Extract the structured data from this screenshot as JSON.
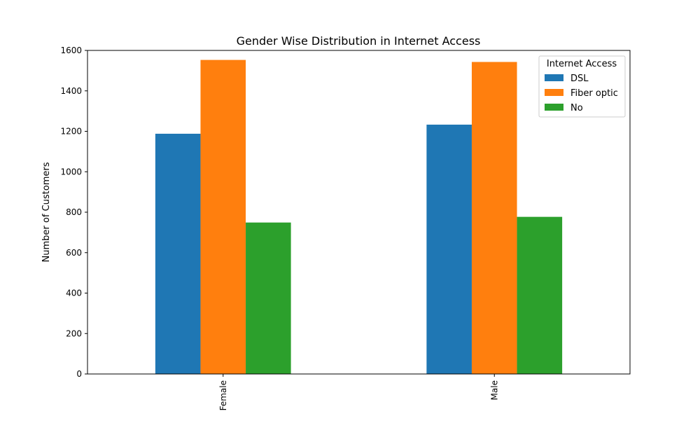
{
  "chart_data": {
    "type": "bar",
    "title": "Gender Wise Distribution in Internet Access",
    "xlabel": "",
    "ylabel": "Number of Customers",
    "categories": [
      "Female",
      "Male"
    ],
    "series": [
      {
        "name": "DSL",
        "color": "#1f77b4",
        "values": [
          1188,
          1233
        ]
      },
      {
        "name": "Fiber optic",
        "color": "#ff7f0e",
        "values": [
          1553,
          1543
        ]
      },
      {
        "name": "No",
        "color": "#2ca02c",
        "values": [
          749,
          777
        ]
      }
    ],
    "ylim": [
      0,
      1600
    ],
    "yticks": [
      "0",
      "200",
      "400",
      "600",
      "800",
      "1000",
      "1200",
      "1400",
      "1600"
    ],
    "legend": {
      "title": "Internet Access",
      "placement": "top-right"
    },
    "grid": false
  }
}
